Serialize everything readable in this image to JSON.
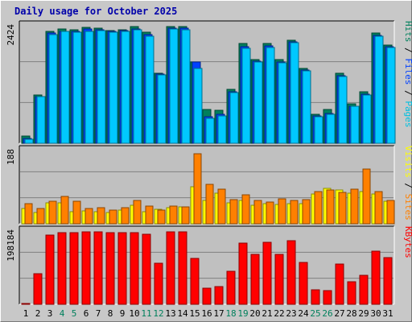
{
  "title": "Daily usage for October 2025",
  "chart_data": [
    {
      "type": "bar",
      "name": "hits-files-pages",
      "categories": [
        "1",
        "2",
        "3",
        "4",
        "5",
        "6",
        "7",
        "8",
        "9",
        "10",
        "11",
        "12",
        "13",
        "14",
        "15",
        "16",
        "17",
        "18",
        "19",
        "20",
        "21",
        "22",
        "23",
        "24",
        "25",
        "26",
        "27",
        "28",
        "29",
        "30",
        "31"
      ],
      "weekend_days": [
        "4",
        "5",
        "11",
        "12",
        "18",
        "19",
        "25",
        "26"
      ],
      "scale_label": "2424",
      "ylim": [
        0,
        2424
      ],
      "y_side_labels": [
        {
          "text": "Pages",
          "color": "#00c0e0"
        },
        {
          "text": "Files",
          "color": "#0040ff"
        },
        {
          "text": "Hits",
          "color": "#00805c"
        }
      ],
      "series": [
        {
          "name": "Hits",
          "color": "#00805c",
          "values": [
            150,
            1000,
            2300,
            2350,
            2340,
            2390,
            2380,
            2330,
            2340,
            2410,
            2290,
            1440,
            2410,
            2400,
            1680,
            700,
            680,
            1110,
            2060,
            1720,
            2060,
            1720,
            2130,
            1550,
            590,
            690,
            1440,
            820,
            1070,
            2270,
            2020
          ]
        },
        {
          "name": "Files",
          "color": "#0040ff",
          "values": [
            100,
            970,
            2280,
            2310,
            2310,
            2350,
            2340,
            2300,
            2320,
            2360,
            2240,
            1420,
            2370,
            2370,
            1670,
            550,
            600,
            1070,
            2000,
            1700,
            2010,
            1680,
            2090,
            1510,
            560,
            620,
            1400,
            770,
            1020,
            2230,
            2000
          ]
        },
        {
          "name": "Pages",
          "color": "#00c8ff",
          "values": [
            80,
            960,
            2240,
            2300,
            2290,
            2310,
            2330,
            2290,
            2300,
            2340,
            2210,
            1410,
            2360,
            2340,
            1550,
            520,
            570,
            1050,
            1960,
            1680,
            1980,
            1660,
            2070,
            1490,
            550,
            600,
            1370,
            760,
            1000,
            2200,
            1980
          ]
        }
      ]
    },
    {
      "type": "bar",
      "name": "visits-sites",
      "categories": [
        "1",
        "2",
        "3",
        "4",
        "5",
        "6",
        "7",
        "8",
        "9",
        "10",
        "11",
        "12",
        "13",
        "14",
        "15",
        "16",
        "17",
        "18",
        "19",
        "20",
        "21",
        "22",
        "23",
        "24",
        "25",
        "26",
        "27",
        "28",
        "29",
        "30",
        "31"
      ],
      "scale_label": "188",
      "ylim": [
        0,
        188
      ],
      "y_side_labels": [
        {
          "text": "Sites",
          "color": "#ff8000"
        },
        {
          "text": "Visits",
          "color": "#ffff00"
        }
      ],
      "series": [
        {
          "name": "Visits",
          "color": "#ffff00",
          "values": [
            40,
            28,
            54,
            54,
            32,
            34,
            30,
            28,
            36,
            48,
            32,
            38,
            42,
            44,
            95,
            60,
            78,
            54,
            60,
            48,
            52,
            50,
            52,
            52,
            76,
            90,
            86,
            78,
            82,
            76,
            58
          ]
        },
        {
          "name": "Sites",
          "color": "#ff8000",
          "values": [
            52,
            40,
            58,
            70,
            58,
            40,
            42,
            36,
            42,
            60,
            46,
            36,
            46,
            44,
            180,
            102,
            88,
            62,
            74,
            60,
            56,
            64,
            60,
            62,
            82,
            86,
            80,
            88,
            140,
            82,
            60
          ]
        }
      ]
    },
    {
      "type": "bar",
      "name": "kbytes",
      "categories": [
        "1",
        "2",
        "3",
        "4",
        "5",
        "6",
        "7",
        "8",
        "9",
        "10",
        "11",
        "12",
        "13",
        "14",
        "15",
        "16",
        "17",
        "18",
        "19",
        "20",
        "21",
        "22",
        "23",
        "24",
        "25",
        "26",
        "27",
        "28",
        "29",
        "30",
        "31"
      ],
      "scale_label": "198184",
      "ylim": [
        0,
        198184
      ],
      "y_side_labels": [
        {
          "text": "KBytes",
          "color": "#ff0000"
        }
      ],
      "series": [
        {
          "name": "KBytes",
          "color": "#ff0000",
          "values": [
            2000,
            83000,
            188000,
            194000,
            194000,
            196000,
            196000,
            194000,
            194000,
            194000,
            189000,
            110000,
            196000,
            196000,
            125000,
            43000,
            49000,
            89000,
            166000,
            136000,
            167000,
            136000,
            172000,
            113000,
            39000,
            38000,
            109000,
            61000,
            79000,
            144000,
            126000
          ]
        }
      ]
    }
  ]
}
